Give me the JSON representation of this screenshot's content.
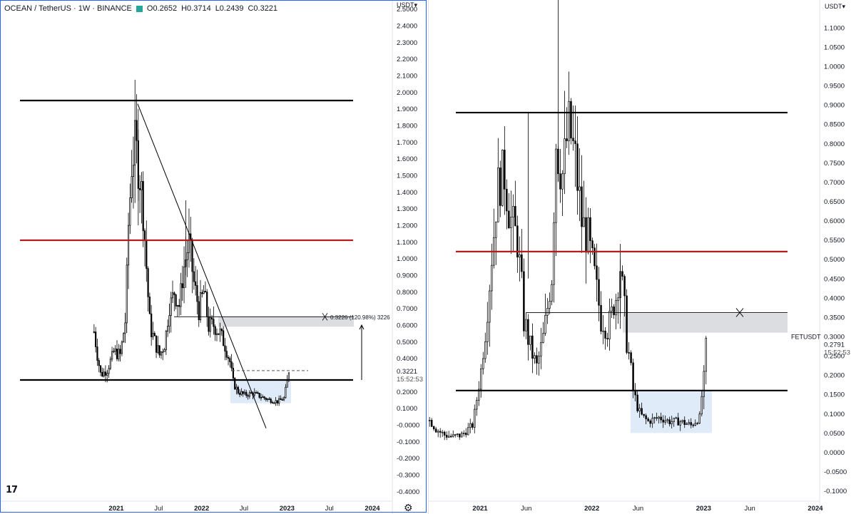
{
  "colors": {
    "accent_border": "#2962ff",
    "support_line": "#000000",
    "resistance_line": "#b71c1c",
    "zone_fill": "#dcdde0",
    "range_box": "#dbe8f9",
    "candle_up": "#ffffff",
    "candle_stroke": "#000000"
  },
  "left": {
    "symbol": "OCEAN / TetherUS · 1W · BINANCE",
    "ohlc": {
      "open": "O0.2652",
      "high": "H0.3714",
      "low": "L0.2439",
      "close": "C0.3221"
    },
    "currency_button": "USDT",
    "tv_logo": "17",
    "settings_icon": "gear-icon",
    "price_label": "0.3221",
    "countdown": "15:52:53",
    "measure_label": "0.3226 (120.98%) 3226",
    "y_ticks": [
      "2.5000",
      "2.4000",
      "2.3000",
      "2.2000",
      "2.1000",
      "2.0000",
      "1.9000",
      "1.8000",
      "1.7000",
      "1.6000",
      "1.5000",
      "1.4000",
      "1.3000",
      "1.2000",
      "1.1000",
      "1.0000",
      "0.9000",
      "0.8000",
      "0.7000",
      "0.6000",
      "0.5000",
      "0.4000",
      "0.3000",
      "0.2000",
      "0.1000",
      "-0.0000",
      "-0.1000",
      "-0.2000",
      "-0.3000",
      "-0.4000"
    ],
    "x_ticks": [
      "2021",
      "Jul",
      "2022",
      "Jul",
      "2023",
      "Jul",
      "2024"
    ]
  },
  "right": {
    "currency_button": "USDT",
    "symbol_label": "FETUSDT",
    "price_label": "0.2791",
    "countdown": "15:52:53",
    "y_ticks": [
      "1.1000",
      "1.0500",
      "1.0000",
      "0.9500",
      "0.9000",
      "0.8500",
      "0.8000",
      "0.7500",
      "0.7000",
      "0.6500",
      "0.6000",
      "0.5500",
      "0.5000",
      "0.4500",
      "0.4000",
      "0.3500",
      "0.3000",
      "0.2500",
      "0.2000",
      "0.1500",
      "0.1000",
      "0.0500",
      "0.0000",
      "-0.0500",
      "-0.1000"
    ],
    "x_ticks": [
      "2021",
      "Jun",
      "2022",
      "Jun",
      "2023",
      "Jun",
      "2024"
    ]
  },
  "chart_data": [
    {
      "type": "candlestick",
      "title": "OCEAN / TetherUS · 1W · BINANCE",
      "ylim": [
        -0.42,
        2.52
      ],
      "last": {
        "open": 0.2652,
        "high": 0.3714,
        "low": 0.2439,
        "close": 0.3221
      },
      "horizontal_levels": [
        {
          "value": 1.95,
          "color": "#000000"
        },
        {
          "value": 1.11,
          "color": "#b71c1c"
        },
        {
          "value": 0.27,
          "color": "#000000"
        }
      ],
      "resistance_zone": [
        0.59,
        0.65
      ],
      "accumulation_range": [
        0.13,
        0.27
      ],
      "measure": {
        "label": "0.3226 (120.98%) 3226",
        "from": 0.27,
        "to": 0.6
      },
      "close_path": [
        {
          "x": "2020-09-28",
          "y": 0.56
        },
        {
          "x": "2020-10-26",
          "y": 0.3
        },
        {
          "x": "2020-11-23",
          "y": 0.33
        },
        {
          "x": "2020-12-21",
          "y": 0.44
        },
        {
          "x": "2021-01-18",
          "y": 0.42
        },
        {
          "x": "2021-02-08",
          "y": 0.62
        },
        {
          "x": "2021-02-22",
          "y": 1.2
        },
        {
          "x": "2021-03-08",
          "y": 1.55
        },
        {
          "x": "2021-03-22",
          "y": 1.7
        },
        {
          "x": "2021-04-12",
          "y": 1.5
        },
        {
          "x": "2021-04-26",
          "y": 1.3
        },
        {
          "x": "2021-05-10",
          "y": 0.95
        },
        {
          "x": "2021-05-24",
          "y": 0.6
        },
        {
          "x": "2021-06-14",
          "y": 0.5
        },
        {
          "x": "2021-07-05",
          "y": 0.42
        },
        {
          "x": "2021-07-26",
          "y": 0.48
        },
        {
          "x": "2021-08-16",
          "y": 0.7
        },
        {
          "x": "2021-09-06",
          "y": 0.8
        },
        {
          "x": "2021-09-27",
          "y": 0.72
        },
        {
          "x": "2021-10-18",
          "y": 0.95
        },
        {
          "x": "2021-11-08",
          "y": 1.1
        },
        {
          "x": "2021-11-29",
          "y": 0.85
        },
        {
          "x": "2021-12-20",
          "y": 0.7
        },
        {
          "x": "2022-01-10",
          "y": 0.8
        },
        {
          "x": "2022-01-31",
          "y": 0.6
        },
        {
          "x": "2022-02-21",
          "y": 0.6
        },
        {
          "x": "2022-03-21",
          "y": 0.55
        },
        {
          "x": "2022-04-11",
          "y": 0.48
        },
        {
          "x": "2022-05-02",
          "y": 0.38
        },
        {
          "x": "2022-05-16",
          "y": 0.25
        },
        {
          "x": "2022-06-06",
          "y": 0.2
        },
        {
          "x": "2022-07-04",
          "y": 0.18
        },
        {
          "x": "2022-08-08",
          "y": 0.19
        },
        {
          "x": "2022-09-12",
          "y": 0.17
        },
        {
          "x": "2022-10-17",
          "y": 0.15
        },
        {
          "x": "2022-11-21",
          "y": 0.14
        },
        {
          "x": "2022-12-19",
          "y": 0.16
        },
        {
          "x": "2023-01-09",
          "y": 0.32
        }
      ]
    },
    {
      "type": "candlestick",
      "title": "FETUSDT",
      "ylim": [
        -0.11,
        1.12
      ],
      "last": {
        "close": 0.2791
      },
      "horizontal_levels": [
        {
          "value": 0.88,
          "color": "#000000"
        },
        {
          "value": 0.52,
          "color": "#b71c1c"
        },
        {
          "value": 0.16,
          "color": "#000000"
        }
      ],
      "resistance_zone": [
        0.31,
        0.36
      ],
      "accumulation_range": [
        0.05,
        0.16
      ],
      "close_path": [
        {
          "x": "2020-07-13",
          "y": 0.09
        },
        {
          "x": "2020-08-10",
          "y": 0.06
        },
        {
          "x": "2020-09-07",
          "y": 0.045
        },
        {
          "x": "2020-10-05",
          "y": 0.04
        },
        {
          "x": "2020-11-02",
          "y": 0.045
        },
        {
          "x": "2020-12-07",
          "y": 0.07
        },
        {
          "x": "2020-12-28",
          "y": 0.17
        },
        {
          "x": "2021-01-18",
          "y": 0.3
        },
        {
          "x": "2021-02-08",
          "y": 0.5
        },
        {
          "x": "2021-03-01",
          "y": 0.7
        },
        {
          "x": "2021-03-22",
          "y": 0.72
        },
        {
          "x": "2021-04-12",
          "y": 0.6
        },
        {
          "x": "2021-05-03",
          "y": 0.55
        },
        {
          "x": "2021-05-24",
          "y": 0.35
        },
        {
          "x": "2021-06-14",
          "y": 0.27
        },
        {
          "x": "2021-07-05",
          "y": 0.22
        },
        {
          "x": "2021-07-26",
          "y": 0.3
        },
        {
          "x": "2021-08-23",
          "y": 0.45
        },
        {
          "x": "2021-09-06",
          "y": 0.8
        },
        {
          "x": "2021-09-27",
          "y": 0.72
        },
        {
          "x": "2021-10-18",
          "y": 0.85
        },
        {
          "x": "2021-11-08",
          "y": 0.75
        },
        {
          "x": "2021-11-29",
          "y": 0.6
        },
        {
          "x": "2021-12-20",
          "y": 0.55
        },
        {
          "x": "2022-01-10",
          "y": 0.45
        },
        {
          "x": "2022-01-31",
          "y": 0.35
        },
        {
          "x": "2022-02-21",
          "y": 0.32
        },
        {
          "x": "2022-03-21",
          "y": 0.4
        },
        {
          "x": "2022-04-04",
          "y": 0.48
        },
        {
          "x": "2022-04-25",
          "y": 0.3
        },
        {
          "x": "2022-05-16",
          "y": 0.16
        },
        {
          "x": "2022-06-06",
          "y": 0.1
        },
        {
          "x": "2022-07-04",
          "y": 0.08
        },
        {
          "x": "2022-08-08",
          "y": 0.09
        },
        {
          "x": "2022-09-12",
          "y": 0.08
        },
        {
          "x": "2022-10-17",
          "y": 0.08
        },
        {
          "x": "2022-11-21",
          "y": 0.07
        },
        {
          "x": "2022-12-19",
          "y": 0.09
        },
        {
          "x": "2023-01-02",
          "y": 0.2
        },
        {
          "x": "2023-01-09",
          "y": 0.2791
        }
      ]
    }
  ]
}
